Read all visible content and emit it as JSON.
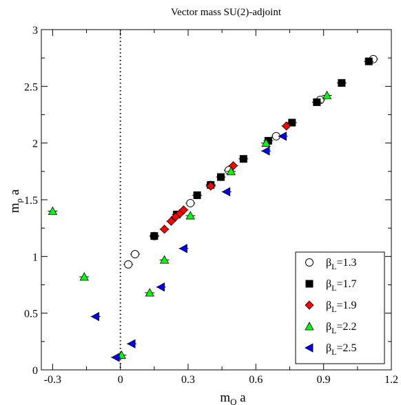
{
  "chart_data": {
    "type": "scatter",
    "title": "Vector mass  SU(2)-adjoint",
    "xlabel": {
      "main": "m",
      "sub": "Q",
      "rest": " a"
    },
    "ylabel": {
      "main": "m",
      "sub": "ρ",
      "rest": " a"
    },
    "xlim": [
      -0.35,
      1.2
    ],
    "ylim": [
      0,
      3
    ],
    "xticks": [
      -0.3,
      0,
      0.3,
      0.6,
      0.9,
      1.2
    ],
    "xtick_labels": [
      "-0.3",
      "0",
      "0.3",
      "0.6",
      "0.9",
      "1.2"
    ],
    "yticks": [
      0,
      0.5,
      1,
      1.5,
      2,
      2.5,
      3
    ],
    "ytick_labels": [
      "0",
      "0.5",
      "1",
      "1.5",
      "2",
      "2.5",
      "3"
    ],
    "vline_x": 0,
    "legend_position": "bottom-right",
    "series": [
      {
        "name_main": "β",
        "name_sub": "L",
        "name_rest": "=1.3",
        "marker": "circle-open",
        "color": "#000000",
        "points": [
          [
            0.035,
            0.93
          ],
          [
            0.065,
            1.02
          ],
          [
            0.15,
            1.18
          ],
          [
            0.31,
            1.47
          ],
          [
            0.4,
            1.63
          ],
          [
            0.48,
            1.76
          ],
          [
            0.69,
            2.06
          ],
          [
            0.885,
            2.38
          ],
          [
            1.12,
            2.74
          ]
        ]
      },
      {
        "name_main": "β",
        "name_sub": "L",
        "name_rest": "=1.7",
        "marker": "square-filled",
        "color": "#000000",
        "points": [
          [
            0.15,
            1.18
          ],
          [
            0.25,
            1.37
          ],
          [
            0.34,
            1.54
          ],
          [
            0.4,
            1.63
          ],
          [
            0.445,
            1.7
          ],
          [
            0.545,
            1.86
          ],
          [
            0.655,
            2.02
          ],
          [
            0.76,
            2.18
          ],
          [
            0.87,
            2.36
          ],
          [
            0.98,
            2.53
          ],
          [
            1.1,
            2.72
          ]
        ]
      },
      {
        "name_main": "β",
        "name_sub": "L",
        "name_rest": "=1.9",
        "marker": "diamond-filled",
        "color": "#ff0000",
        "points": [
          [
            0.195,
            1.24
          ],
          [
            0.225,
            1.31
          ],
          [
            0.245,
            1.35
          ],
          [
            0.265,
            1.38
          ],
          [
            0.28,
            1.41
          ],
          [
            0.4,
            1.62
          ],
          [
            0.5,
            1.8
          ],
          [
            0.735,
            2.15
          ]
        ]
      },
      {
        "name_main": "β",
        "name_sub": "L",
        "name_rest": "=2.2",
        "marker": "triangle-up-filled",
        "color": "#00ff00",
        "points": [
          [
            -0.3,
            1.4
          ],
          [
            -0.16,
            0.82
          ],
          [
            0.005,
            0.13
          ],
          [
            0.13,
            0.68
          ],
          [
            0.195,
            0.97
          ],
          [
            0.31,
            1.36
          ],
          [
            0.49,
            1.75
          ],
          [
            0.645,
            2.0
          ],
          [
            0.915,
            2.42
          ]
        ]
      },
      {
        "name_main": "β",
        "name_sub": "L",
        "name_rest": "=2.5",
        "marker": "triangle-left-filled",
        "color": "#0000ff",
        "points": [
          [
            -0.02,
            0.11
          ],
          [
            -0.11,
            0.47
          ],
          [
            0.05,
            0.23
          ],
          [
            0.18,
            0.73
          ],
          [
            0.28,
            1.07
          ],
          [
            0.47,
            1.57
          ],
          [
            0.645,
            1.93
          ],
          [
            0.72,
            2.06
          ]
        ]
      }
    ]
  }
}
